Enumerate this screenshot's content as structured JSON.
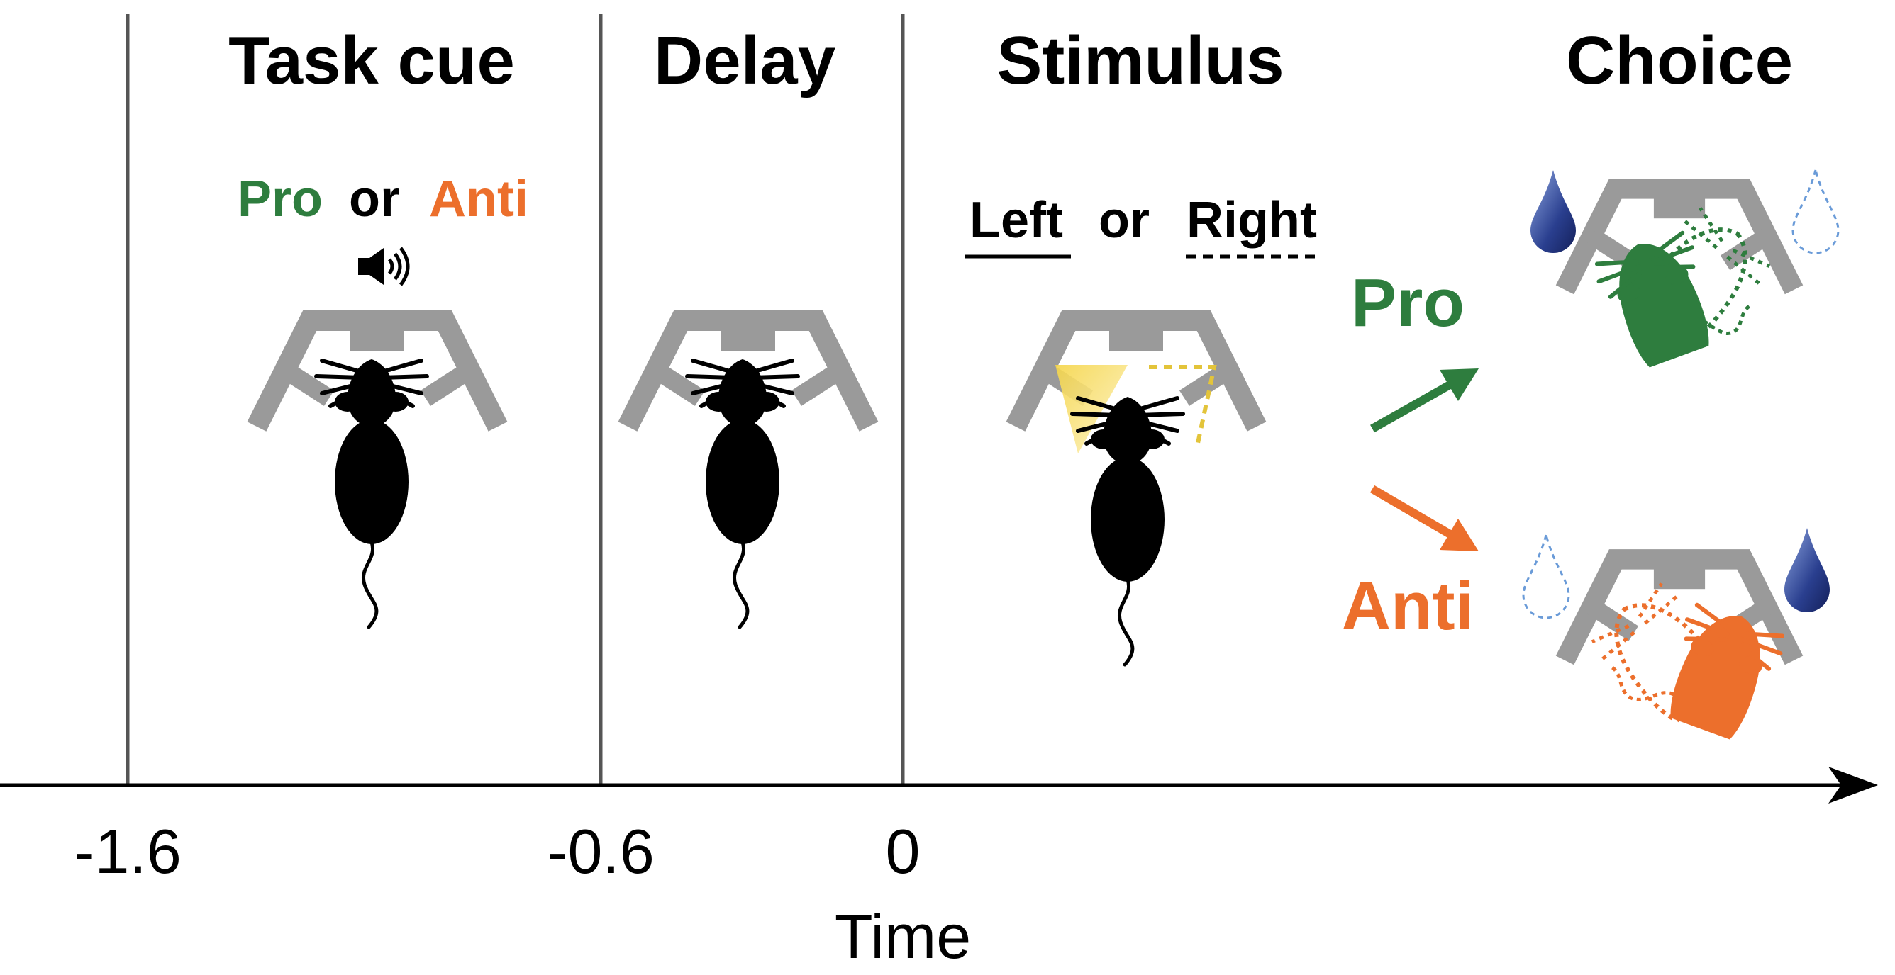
{
  "headers": {
    "task_cue": "Task cue",
    "delay": "Delay",
    "stimulus": "Stimulus",
    "choice": "Choice"
  },
  "cue": {
    "pro": "Pro",
    "or": "or",
    "anti": "Anti"
  },
  "stimulus_choice": {
    "left": "Left",
    "or": "or",
    "right": "Right"
  },
  "outcomes": {
    "pro": "Pro",
    "anti": "Anti"
  },
  "axis": {
    "title": "Time",
    "ticks": [
      {
        "label": "-1.6",
        "value": -1.6
      },
      {
        "label": "-0.6",
        "value": -0.6
      },
      {
        "label": "0",
        "value": 0
      }
    ]
  },
  "colors": {
    "pro": "#2e7d3e",
    "anti": "#ec6f2c",
    "port_gray": "#9a9a9a",
    "light": "#f2d64a",
    "water_drop": "#2a3f8f",
    "divider": "#555555"
  },
  "icons": [
    "speaker-icon",
    "mouse-icon",
    "water-drop-icon",
    "light-cone-icon",
    "arrow-icon"
  ]
}
